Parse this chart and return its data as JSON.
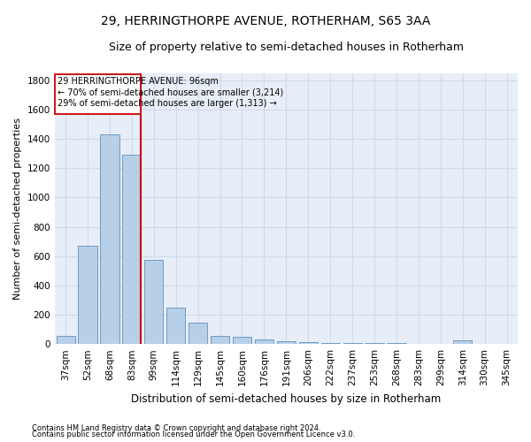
{
  "title1": "29, HERRINGTHORPE AVENUE, ROTHERHAM, S65 3AA",
  "title2": "Size of property relative to semi-detached houses in Rotherham",
  "xlabel": "Distribution of semi-detached houses by size in Rotherham",
  "ylabel": "Number of semi-detached properties",
  "footnote1": "Contains HM Land Registry data © Crown copyright and database right 2024.",
  "footnote2": "Contains public sector information licensed under the Open Government Licence v3.0.",
  "categories": [
    "37sqm",
    "52sqm",
    "68sqm",
    "83sqm",
    "99sqm",
    "114sqm",
    "129sqm",
    "145sqm",
    "160sqm",
    "176sqm",
    "191sqm",
    "206sqm",
    "222sqm",
    "237sqm",
    "253sqm",
    "268sqm",
    "283sqm",
    "299sqm",
    "314sqm",
    "330sqm",
    "345sqm"
  ],
  "values": [
    55,
    670,
    1430,
    1290,
    575,
    250,
    145,
    55,
    50,
    30,
    20,
    15,
    10,
    8,
    5,
    8,
    3,
    3,
    25,
    3,
    3
  ],
  "bar_color": "#b8cfe8",
  "bar_edge_color": "#6090c0",
  "vline_color": "#cc0000",
  "subject_label": "29 HERRINGTHORPE AVENUE: 96sqm",
  "smaller_text": "← 70% of semi-detached houses are smaller (3,214)",
  "larger_text": "29% of semi-detached houses are larger (1,313) →",
  "annotation_box_color": "#cc0000",
  "ylim": [
    0,
    1850
  ],
  "yticks": [
    0,
    200,
    400,
    600,
    800,
    1000,
    1200,
    1400,
    1600,
    1800
  ],
  "grid_color": "#d0daea",
  "bg_color": "#e8eef8",
  "title1_fontsize": 10,
  "title2_fontsize": 9,
  "xlabel_fontsize": 8.5,
  "ylabel_fontsize": 8,
  "tick_fontsize": 7.5,
  "annot_fontsize": 7,
  "footnote_fontsize": 6
}
